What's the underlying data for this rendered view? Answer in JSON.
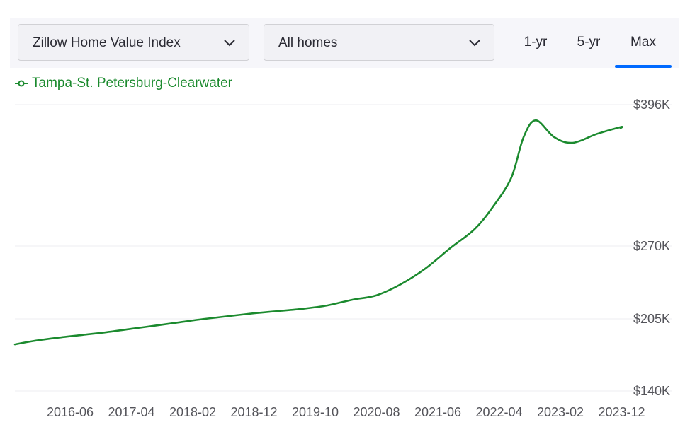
{
  "controls": {
    "metric_select": "Zillow Home Value Index",
    "home_type_select": "All homes",
    "range_tabs": [
      {
        "label": "1-yr",
        "active": false
      },
      {
        "label": "5-yr",
        "active": false
      },
      {
        "label": "Max",
        "active": true
      }
    ],
    "accent_color": "#006aff"
  },
  "chart_data": {
    "type": "line",
    "title": "",
    "xlabel": "",
    "ylabel": "",
    "grid": true,
    "legend_position": "top-left",
    "series": [
      {
        "name": "Tampa-St. Petersburg-Clearwater",
        "color": "#1b8a2e",
        "points": [
          [
            "2015-08",
            182000
          ],
          [
            "2015-12",
            185000
          ],
          [
            "2016-04",
            188000
          ],
          [
            "2016-08",
            190500
          ],
          [
            "2016-12",
            193000
          ],
          [
            "2017-04",
            196000
          ],
          [
            "2017-08",
            199000
          ],
          [
            "2017-12",
            202000
          ],
          [
            "2018-04",
            205000
          ],
          [
            "2018-08",
            207500
          ],
          [
            "2018-12",
            210000
          ],
          [
            "2019-04",
            212000
          ],
          [
            "2019-08",
            214000
          ],
          [
            "2019-12",
            217000
          ],
          [
            "2020-04",
            222000
          ],
          [
            "2020-08",
            226000
          ],
          [
            "2020-12",
            236000
          ],
          [
            "2021-04",
            250000
          ],
          [
            "2021-08",
            268000
          ],
          [
            "2021-12",
            285000
          ],
          [
            "2022-03",
            305000
          ],
          [
            "2022-06",
            331000
          ],
          [
            "2022-08",
            367000
          ],
          [
            "2022-10",
            382000
          ],
          [
            "2023-01",
            367000
          ],
          [
            "2023-04",
            362000
          ],
          [
            "2023-08",
            370000
          ],
          [
            "2023-12",
            376000
          ],
          [
            "2024-01",
            375000
          ]
        ]
      }
    ],
    "x_ticks": [
      "2016-06",
      "2017-04",
      "2018-02",
      "2018-12",
      "2019-10",
      "2020-08",
      "2021-06",
      "2022-04",
      "2023-02",
      "2023-12"
    ],
    "y_ticks": [
      {
        "value": 140000,
        "label": "$140K"
      },
      {
        "value": 205000,
        "label": "$205K"
      },
      {
        "value": 270000,
        "label": "$270K"
      },
      {
        "value": 396000,
        "label": "$396K"
      }
    ]
  }
}
